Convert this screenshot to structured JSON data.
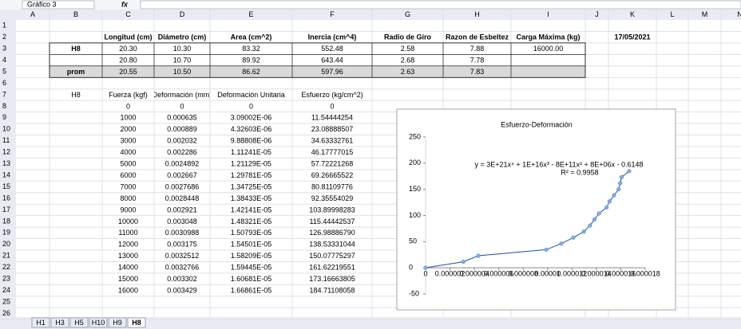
{
  "name_box": "Gráfico 3",
  "formula_icon": "fx",
  "columns": [
    "A",
    "B",
    "C",
    "D",
    "E",
    "F",
    "G",
    "H",
    "I",
    "J",
    "K",
    "L",
    "M",
    "N"
  ],
  "rows": [
    1,
    2,
    3,
    4,
    5,
    6,
    7,
    8,
    9,
    10,
    11,
    12,
    13,
    14,
    15,
    16,
    17,
    18,
    19,
    20,
    21,
    22,
    23,
    24,
    25,
    26
  ],
  "cells": {
    "C2": "Longitud (cm)",
    "D2": "Diámetro (cm)",
    "E2": "Area (cm^2)",
    "F2": "Inercia (cm^4)",
    "G2": "Radio de Giro",
    "H2": "Razon de Esbeltez",
    "I2": "Carga Máxima (kg)",
    "K2": "17/05/2021",
    "B3": "H8",
    "C3": "20.30",
    "D3": "10.30",
    "E3": "83.32",
    "F3": "552.48",
    "G3": "2.58",
    "H3": "7.88",
    "I3": "16000.00",
    "C4": "20.80",
    "D4": "10.70",
    "E4": "89.92",
    "F4": "643.44",
    "G4": "2.68",
    "H4": "7.78",
    "B5": "prom",
    "C5": "20.55",
    "D5": "10.50",
    "E5": "86.62",
    "F5": "597.96",
    "G5": "2.63",
    "H5": "7.83",
    "B7": "H8",
    "C7": "Fuerza (kgf)",
    "D7": "Deformación (mm)",
    "E7": "Deformación Unitaria",
    "F7": "Esfuerzo (kg/cm^2)",
    "C8": "0",
    "D8": "0",
    "E8": "0",
    "F8": "0",
    "C9": "1000",
    "D9": "0.000635",
    "E9": "3.09002E-06",
    "F9": "11.54444254",
    "C10": "2000",
    "D10": "0.000889",
    "E10": "4.32603E-06",
    "F10": "23.08888507",
    "C11": "3000",
    "D11": "0.002032",
    "E11": "9.88808E-06",
    "F11": "34.63332761",
    "C12": "4000",
    "D12": "0.002286",
    "E12": "1.11241E-05",
    "F12": "46.17777015",
    "C13": "5000",
    "D13": "0.0024892",
    "E13": "1.21129E-05",
    "F13": "57.72221268",
    "C14": "6000",
    "D14": "0.002667",
    "E14": "1.29781E-05",
    "F14": "69.26665522",
    "C15": "7000",
    "D15": "0.0027686",
    "E15": "1.34725E-05",
    "F15": "80.81109776",
    "C16": "8000",
    "D16": "0.0028448",
    "E16": "1.38433E-05",
    "F16": "92.35554029",
    "C17": "9000",
    "D17": "0.002921",
    "E17": "1.42141E-05",
    "F17": "103.89998283",
    "C18": "10000",
    "D18": "0.003048",
    "E18": "1.48321E-05",
    "F18": "115.44442537",
    "C19": "11000",
    "D19": "0.0030988",
    "E19": "1.50793E-05",
    "F19": "126.98886790",
    "C20": "12000",
    "D20": "0.003175",
    "E20": "1.54501E-05",
    "F20": "138.53331044",
    "C21": "13000",
    "D21": "0.0032512",
    "E21": "1.58209E-05",
    "F21": "150.07775297",
    "C22": "14000",
    "D22": "0.0032766",
    "E22": "1.59445E-05",
    "F22": "161.62219551",
    "C23": "15000",
    "D23": "0.003302",
    "E23": "1.60681E-05",
    "F23": "173.16663805",
    "C24": "16000",
    "D24": "0.003429",
    "E24": "1.66861E-05",
    "F24": "184.71108058"
  },
  "sheet_tabs": [
    "H1",
    "H3",
    "H5",
    "H10",
    "H9",
    "H8"
  ],
  "chart_data": {
    "type": "scatter",
    "title": "Esfuerzo-Deformación",
    "annotations": [
      "y = 3E+21x⁴ + 1E+16x³ - 8E+11x² + 8E+06x - 0.6148",
      "R² = 0.9958"
    ],
    "x": [
      0,
      3.09002e-06,
      4.32603e-06,
      9.88808e-06,
      1.11241e-05,
      1.21129e-05,
      1.29781e-05,
      1.34725e-05,
      1.38433e-05,
      1.42141e-05,
      1.48321e-05,
      1.50793e-05,
      1.54501e-05,
      1.58209e-05,
      1.59445e-05,
      1.60681e-05,
      1.66861e-05
    ],
    "y": [
      0,
      11.54444254,
      23.08888507,
      34.63332761,
      46.17777015,
      57.72221268,
      69.26665522,
      80.81109776,
      92.35554029,
      103.89998283,
      115.44442537,
      126.9888679,
      138.53331044,
      150.07775297,
      161.62219551,
      173.16663805,
      184.71108058
    ],
    "line_color": "#1f4e9a",
    "marker_color": "#7fb2e5",
    "xlim": [
      0,
      1.8e-05
    ],
    "xticks": [
      0,
      2e-06,
      4e-06,
      6e-06,
      8e-06,
      1e-05,
      1.2e-05,
      1.4e-05,
      1.6e-05,
      1.8e-05
    ],
    "ylim": [
      -50,
      250
    ],
    "yticks": [
      -50,
      0,
      50,
      100,
      150,
      200,
      250
    ]
  }
}
